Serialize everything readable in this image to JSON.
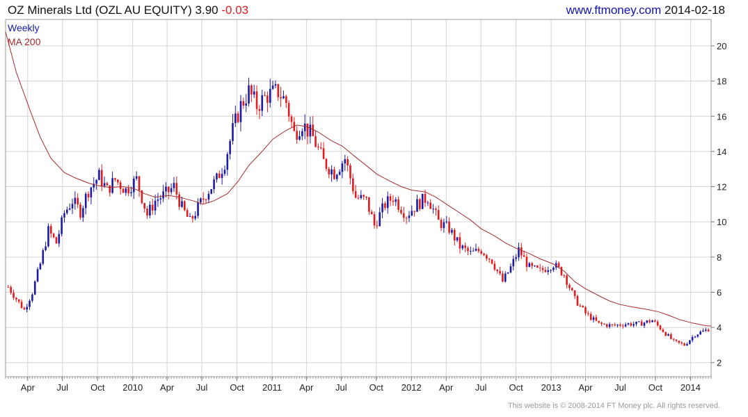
{
  "header": {
    "title": "OZ Minerals Ltd (OZL AU EQUITY)",
    "last_price": "3.90",
    "change": "-0.03",
    "site": "www.ftmoney.com",
    "date": "2014-02-18"
  },
  "legend": {
    "period": "Weekly",
    "ma": "MA 200"
  },
  "footer": "This website is © 2008-2014 FT Money plc. All rights reserved.",
  "colors": {
    "up": "#1a1aa8",
    "down": "#e31a1c",
    "ma": "#a52a2a",
    "grid": "#d4d4d4",
    "header_change": "#e31a1c",
    "site": "#1010b0"
  },
  "chart_data": {
    "type": "candlestick",
    "frequency": "weekly",
    "x_range": [
      "2009-02-02",
      "2014-02-24"
    ],
    "ylim": [
      1.2,
      21.5
    ],
    "y_ticks": [
      2,
      4,
      6,
      8,
      10,
      12,
      14,
      16,
      18,
      20
    ],
    "x_ticks": [
      {
        "label": "Apr",
        "date": "2009-04-01"
      },
      {
        "label": "Jul",
        "date": "2009-07-01"
      },
      {
        "label": "Oct",
        "date": "2009-10-01"
      },
      {
        "label": "2010",
        "date": "2010-01-01"
      },
      {
        "label": "Apr",
        "date": "2010-04-01"
      },
      {
        "label": "Jul",
        "date": "2010-07-01"
      },
      {
        "label": "Oct",
        "date": "2010-10-01"
      },
      {
        "label": "2011",
        "date": "2011-01-01"
      },
      {
        "label": "Apr",
        "date": "2011-04-01"
      },
      {
        "label": "Jul",
        "date": "2011-07-01"
      },
      {
        "label": "Oct",
        "date": "2011-10-01"
      },
      {
        "label": "2012",
        "date": "2012-01-01"
      },
      {
        "label": "Apr",
        "date": "2012-04-01"
      },
      {
        "label": "Jul",
        "date": "2012-07-01"
      },
      {
        "label": "Oct",
        "date": "2012-10-01"
      },
      {
        "label": "2013",
        "date": "2013-01-01"
      },
      {
        "label": "Apr",
        "date": "2013-04-01"
      },
      {
        "label": "Jul",
        "date": "2013-07-01"
      },
      {
        "label": "Oct",
        "date": "2013-10-01"
      },
      {
        "label": "2014",
        "date": "2014-01-01"
      }
    ],
    "price_path": [
      [
        "2009-02-09",
        6.3
      ],
      [
        "2009-03-09",
        5.4
      ],
      [
        "2009-03-23",
        5.0
      ],
      [
        "2009-04-13",
        6.0
      ],
      [
        "2009-05-04",
        7.6
      ],
      [
        "2009-05-25",
        9.5
      ],
      [
        "2009-06-15",
        8.8
      ],
      [
        "2009-07-06",
        10.5
      ],
      [
        "2009-07-27",
        11.2
      ],
      [
        "2009-08-17",
        10.6
      ],
      [
        "2009-09-07",
        11.8
      ],
      [
        "2009-10-05",
        12.6
      ],
      [
        "2009-10-26",
        11.8
      ],
      [
        "2009-11-16",
        12.4
      ],
      [
        "2009-12-14",
        11.8
      ],
      [
        "2010-01-11",
        12.4
      ],
      [
        "2010-02-08",
        10.4
      ],
      [
        "2010-03-01",
        11.2
      ],
      [
        "2010-03-29",
        11.6
      ],
      [
        "2010-04-19",
        12.0
      ],
      [
        "2010-05-10",
        10.8
      ],
      [
        "2010-05-31",
        10.0
      ],
      [
        "2010-06-21",
        10.8
      ],
      [
        "2010-07-12",
        11.6
      ],
      [
        "2010-08-09",
        12.4
      ],
      [
        "2010-08-30",
        13.4
      ],
      [
        "2010-09-20",
        15.2
      ],
      [
        "2010-10-11",
        16.6
      ],
      [
        "2010-11-01",
        17.4
      ],
      [
        "2010-11-22",
        16.6
      ],
      [
        "2010-12-20",
        17.2
      ],
      [
        "2011-01-17",
        17.4
      ],
      [
        "2011-02-07",
        16.8
      ],
      [
        "2011-02-28",
        15.0
      ],
      [
        "2011-03-21",
        15.6
      ],
      [
        "2011-04-18",
        14.8
      ],
      [
        "2011-05-16",
        13.4
      ],
      [
        "2011-06-13",
        12.8
      ],
      [
        "2011-07-11",
        13.6
      ],
      [
        "2011-08-08",
        11.4
      ],
      [
        "2011-09-05",
        11.2
      ],
      [
        "2011-09-26",
        9.8
      ],
      [
        "2011-10-24",
        11.0
      ],
      [
        "2011-11-14",
        11.4
      ],
      [
        "2011-12-19",
        10.4
      ],
      [
        "2012-01-16",
        11.0
      ],
      [
        "2012-02-13",
        11.4
      ],
      [
        "2012-03-12",
        10.0
      ],
      [
        "2012-04-09",
        9.6
      ],
      [
        "2012-05-07",
        8.6
      ],
      [
        "2012-06-04",
        8.2
      ],
      [
        "2012-07-02",
        8.4
      ],
      [
        "2012-07-30",
        7.8
      ],
      [
        "2012-08-27",
        6.6
      ],
      [
        "2012-09-17",
        7.4
      ],
      [
        "2012-10-08",
        8.4
      ],
      [
        "2012-11-05",
        7.4
      ],
      [
        "2012-12-03",
        7.2
      ],
      [
        "2013-01-07",
        7.6
      ],
      [
        "2013-02-04",
        7.0
      ],
      [
        "2013-03-04",
        5.6
      ],
      [
        "2013-04-01",
        4.8
      ],
      [
        "2013-05-06",
        4.2
      ],
      [
        "2013-06-10",
        4.1
      ],
      [
        "2013-07-15",
        4.2
      ],
      [
        "2013-08-19",
        4.2
      ],
      [
        "2013-09-23",
        4.4
      ],
      [
        "2013-10-21",
        3.8
      ],
      [
        "2013-11-18",
        3.2
      ],
      [
        "2013-12-16",
        3.0
      ],
      [
        "2014-01-13",
        3.6
      ],
      [
        "2014-02-17",
        3.9
      ]
    ],
    "ma200_path": [
      [
        "2009-02-02",
        20.8
      ],
      [
        "2009-03-02",
        18.5
      ],
      [
        "2009-04-06",
        16.4
      ],
      [
        "2009-05-04",
        14.8
      ],
      [
        "2009-06-01",
        13.6
      ],
      [
        "2009-07-06",
        12.8
      ],
      [
        "2009-08-03",
        12.5
      ],
      [
        "2009-09-07",
        12.2
      ],
      [
        "2009-10-05",
        12.05
      ],
      [
        "2009-11-02",
        11.95
      ],
      [
        "2009-12-07",
        12.0
      ],
      [
        "2010-01-04",
        11.9
      ],
      [
        "2010-02-01",
        11.6
      ],
      [
        "2010-03-01",
        11.4
      ],
      [
        "2010-04-05",
        11.5
      ],
      [
        "2010-05-03",
        11.4
      ],
      [
        "2010-06-07",
        11.2
      ],
      [
        "2010-07-05",
        11.0
      ],
      [
        "2010-08-02",
        11.2
      ],
      [
        "2010-09-06",
        11.6
      ],
      [
        "2010-10-04",
        12.3
      ],
      [
        "2010-11-01",
        13.2
      ],
      [
        "2010-12-06",
        14.0
      ],
      [
        "2011-01-03",
        14.7
      ],
      [
        "2011-02-07",
        15.2
      ],
      [
        "2011-03-07",
        15.5
      ],
      [
        "2011-04-04",
        15.4
      ],
      [
        "2011-05-02",
        15.1
      ],
      [
        "2011-06-06",
        14.6
      ],
      [
        "2011-07-04",
        14.3
      ],
      [
        "2011-08-01",
        13.8
      ],
      [
        "2011-09-05",
        13.2
      ],
      [
        "2011-10-03",
        12.7
      ],
      [
        "2011-11-07",
        12.3
      ],
      [
        "2011-12-05",
        12.0
      ],
      [
        "2012-01-02",
        11.8
      ],
      [
        "2012-02-06",
        11.7
      ],
      [
        "2012-03-05",
        11.4
      ],
      [
        "2012-04-02",
        11.0
      ],
      [
        "2012-05-07",
        10.5
      ],
      [
        "2012-06-04",
        10.1
      ],
      [
        "2012-07-02",
        9.6
      ],
      [
        "2012-08-06",
        9.2
      ],
      [
        "2012-09-03",
        8.8
      ],
      [
        "2012-10-01",
        8.5
      ],
      [
        "2012-11-05",
        8.2
      ],
      [
        "2012-12-03",
        7.9
      ],
      [
        "2013-01-07",
        7.6
      ],
      [
        "2013-02-04",
        7.2
      ],
      [
        "2013-03-04",
        6.6
      ],
      [
        "2013-04-01",
        6.2
      ],
      [
        "2013-05-06",
        5.8
      ],
      [
        "2013-06-03",
        5.5
      ],
      [
        "2013-07-01",
        5.3
      ],
      [
        "2013-08-05",
        5.15
      ],
      [
        "2013-09-02",
        5.05
      ],
      [
        "2013-10-07",
        4.9
      ],
      [
        "2013-11-04",
        4.7
      ],
      [
        "2013-12-02",
        4.45
      ],
      [
        "2014-01-06",
        4.25
      ],
      [
        "2014-02-10",
        4.1
      ],
      [
        "2014-02-24",
        4.08
      ]
    ]
  }
}
